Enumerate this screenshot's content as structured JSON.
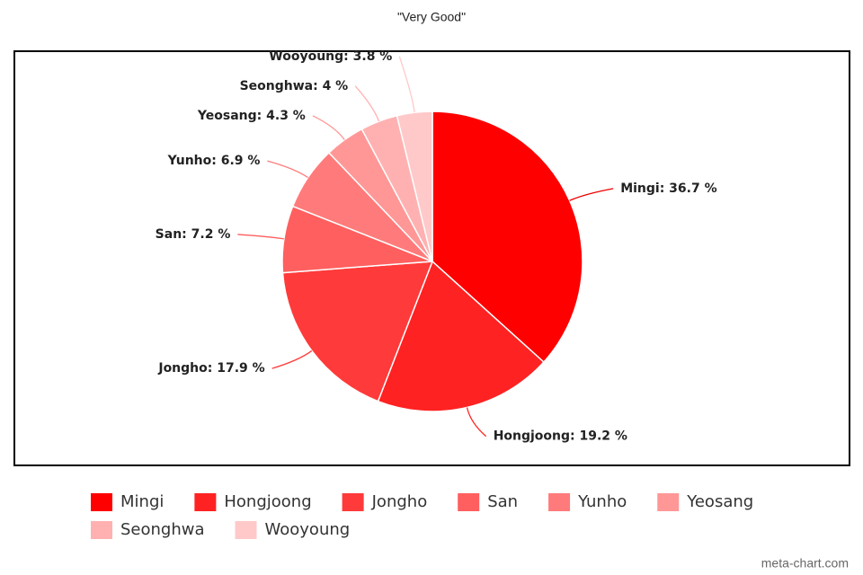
{
  "chart_data": {
    "type": "pie",
    "title": "\"Very Good\"",
    "categories": [
      "Mingi",
      "Hongjoong",
      "Jongho",
      "San",
      "Yunho",
      "Yeosang",
      "Seonghwa",
      "Wooyoung"
    ],
    "values": [
      36.7,
      19.2,
      17.9,
      7.2,
      6.9,
      4.3,
      4,
      3.8
    ],
    "value_labels": [
      "Mingi: 36.7 %",
      "Hongjoong: 19.2 %",
      "Jongho: 17.9 %",
      "San: 7.2 %",
      "Yunho: 6.9 %",
      "Yeosang: 4.3 %",
      "Seonghwa: 4 %",
      "Wooyoung: 3.8 %"
    ],
    "colors": [
      "#ff0000",
      "#ff2222",
      "#ff3a3a",
      "#ff5f5f",
      "#ff7b7b",
      "#ff9797",
      "#ffb1b1",
      "#ffc9c9"
    ],
    "legend": "bottom",
    "watermark": "meta-chart.com"
  }
}
